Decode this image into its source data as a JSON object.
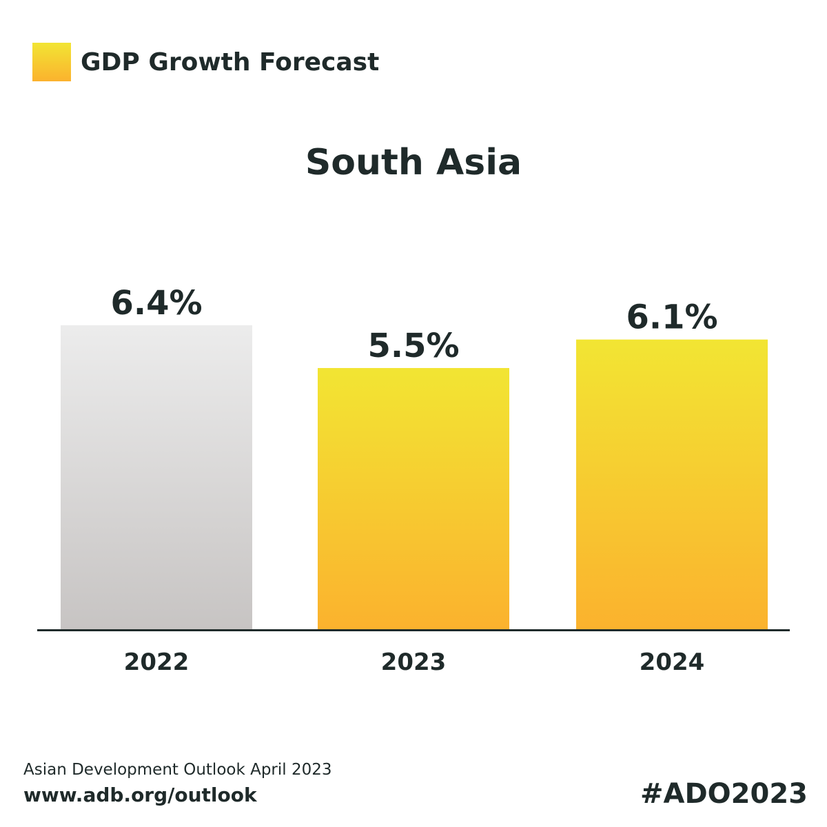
{
  "legend": {
    "label": "GDP Growth Forecast",
    "swatch_color_top": "#F2E533",
    "swatch_color_bottom": "#FBB22E"
  },
  "chart_data": {
    "type": "bar",
    "title": "South Asia",
    "categories": [
      "2022",
      "2023",
      "2024"
    ],
    "values": [
      6.4,
      5.5,
      6.1
    ],
    "value_labels": [
      "6.4%",
      "5.5%",
      "6.1%"
    ],
    "unit": "%",
    "ylim": [
      0,
      6.4
    ],
    "grid": false,
    "legend_position": "top-left",
    "bar_styles": [
      "actual",
      "forecast",
      "forecast"
    ],
    "colors": {
      "actual_top": "#ECECEC",
      "actual_bottom": "#C7C4C3",
      "forecast_top": "#F2E533",
      "forecast_bottom": "#FBB22E",
      "axis": "#1F2A2A",
      "text": "#1F2A2A"
    }
  },
  "footer": {
    "source": "Asian Development Outlook April 2023",
    "url": "www.adb.org/outlook",
    "hashtag": "#ADO2023"
  }
}
